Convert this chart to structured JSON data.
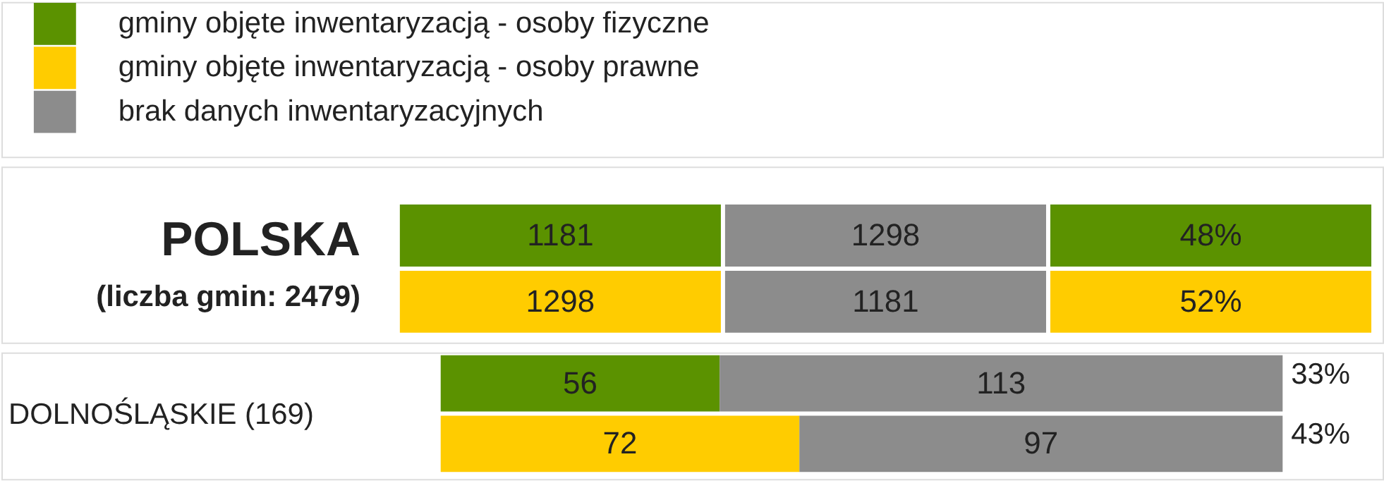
{
  "chart_data": [
    {
      "type": "heatmap",
      "title": "POLSKA",
      "subtitle": "(liczba gmin: 2479)",
      "categories": [
        null,
        null,
        null
      ],
      "y_categories": [
        null,
        null
      ],
      "cells": [
        [
          1181,
          1298,
          48
        ],
        [
          1298,
          1181,
          52
        ]
      ],
      "cell_labels": [
        [
          "1181",
          "1298",
          "48%"
        ],
        [
          "1298",
          "1181",
          "52%"
        ]
      ],
      "colors": [
        [
          "#5b9200",
          "#8c8c8c",
          "#5b9200"
        ],
        [
          "#ffcc00",
          "#8c8c8c",
          "#ffcc00"
        ]
      ]
    },
    {
      "type": "bar",
      "orientation": "horizontal",
      "stacked": true,
      "ylabel": "DOLNOŚLĄSKIE (169)",
      "categories": [
        null,
        null
      ],
      "xlim": [
        0,
        169
      ],
      "tick_labels": false,
      "data_labels": true,
      "legend": "top left",
      "series": [
        {
          "name": "gminy objęte inwentaryzacją - osoby fizyczne",
          "color": "#5b9200",
          "values": [
            56,
            null
          ]
        },
        {
          "name": "gminy objęte inwentaryzacją - osoby prawne",
          "color": "#ffcc00",
          "values": [
            null,
            72
          ]
        },
        {
          "name": "brak danych inwentaryzacyjnych",
          "color": "#8c8c8c",
          "values": [
            113,
            97
          ]
        }
      ],
      "annotations": [
        "33%",
        "43%"
      ]
    }
  ]
}
